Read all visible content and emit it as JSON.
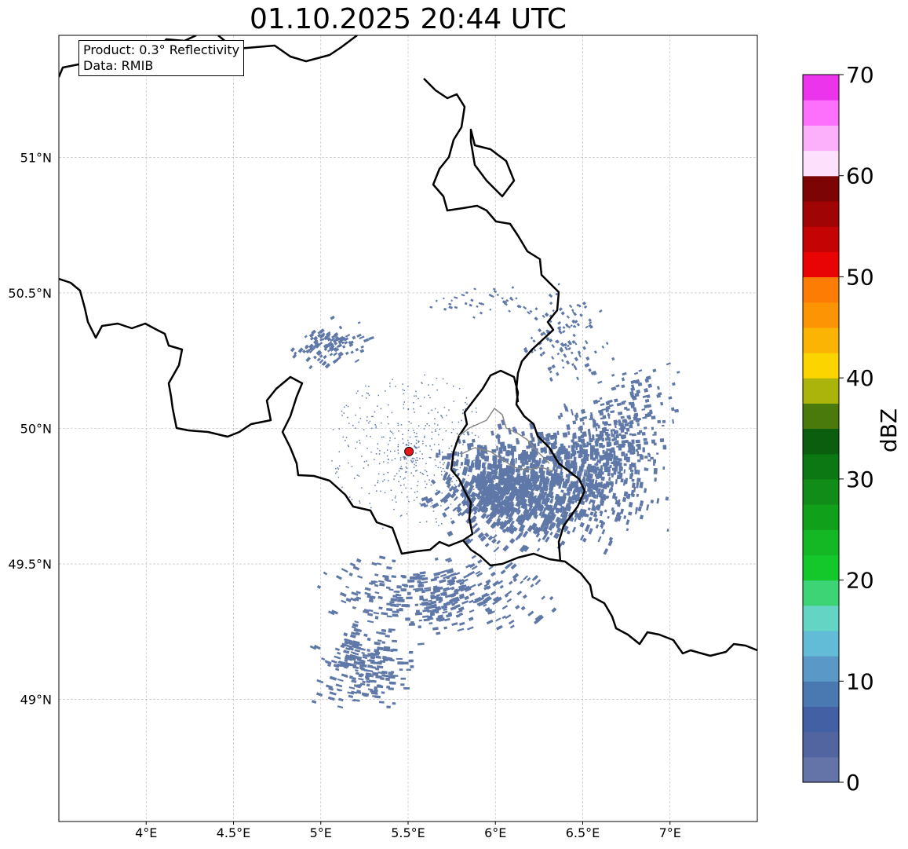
{
  "title": "01.10.2025 20:44 UTC",
  "info": {
    "product": "Product: 0.3° Reflectivity",
    "data_source": "Data: RMIB"
  },
  "map": {
    "lon_range": [
      3.5,
      7.5
    ],
    "lat_range": [
      48.55,
      51.45
    ],
    "lon_ticks": [
      {
        "value": 4.0,
        "label": "4°E"
      },
      {
        "value": 4.5,
        "label": "4.5°E"
      },
      {
        "value": 5.0,
        "label": "5°E"
      },
      {
        "value": 5.5,
        "label": "5.5°E"
      },
      {
        "value": 6.0,
        "label": "6°E"
      },
      {
        "value": 6.5,
        "label": "6.5°E"
      },
      {
        "value": 7.0,
        "label": "7°E"
      }
    ],
    "lat_ticks": [
      {
        "value": 49.0,
        "label": "49°N"
      },
      {
        "value": 49.5,
        "label": "49.5°N"
      },
      {
        "value": 50.0,
        "label": "50°N"
      },
      {
        "value": 50.5,
        "label": "50.5°N"
      },
      {
        "value": 51.0,
        "label": "51°N"
      }
    ],
    "radar_site": {
      "lon": 5.505,
      "lat": 49.915,
      "color": "#e81818"
    },
    "echo_color": "#5f78a8"
  },
  "colorbar": {
    "label": "dBZ",
    "min": 0,
    "max": 70,
    "ticks": [
      {
        "value": 0,
        "label": "0"
      },
      {
        "value": 10,
        "label": "10"
      },
      {
        "value": 20,
        "label": "20"
      },
      {
        "value": 30,
        "label": "30"
      },
      {
        "value": 40,
        "label": "40"
      },
      {
        "value": 50,
        "label": "50"
      },
      {
        "value": 60,
        "label": "60"
      },
      {
        "value": 70,
        "label": "70"
      }
    ],
    "colors": [
      "#6474a8",
      "#5265a0",
      "#4460a4",
      "#4a78b0",
      "#5a98c8",
      "#62bcd8",
      "#64d4c4",
      "#3cd474",
      "#14c82c",
      "#14b824",
      "#10a01a",
      "#128c18",
      "#0c7814",
      "#0a5e0e",
      "#4a7a0c",
      "#aab40a",
      "#fcd400",
      "#fcb404",
      "#fc9404",
      "#fc7c04",
      "#e80404",
      "#c40404",
      "#a00404",
      "#7c0404",
      "#fce0fc",
      "#fcb0fc",
      "#fc70fc",
      "#ec34ec"
    ]
  }
}
